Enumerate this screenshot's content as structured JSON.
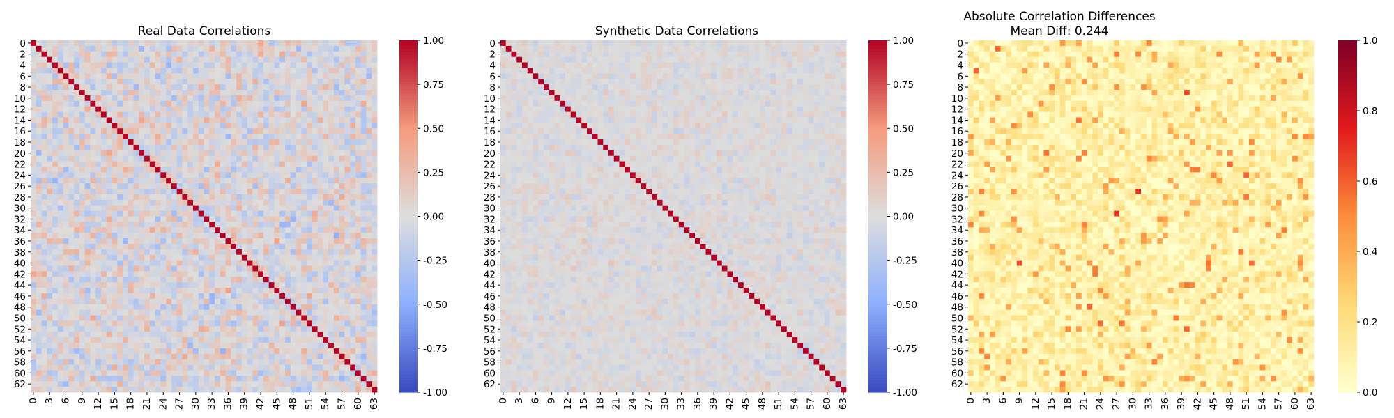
{
  "chart_data": [
    {
      "type": "heatmap",
      "title": "Real Data Correlations",
      "n": 64,
      "rows": 64,
      "cols": 64,
      "colormap": "coolwarm",
      "vmin": -1.0,
      "vmax": 1.0,
      "diagonal": 1.0,
      "offdiag_typical_range": [
        -0.6,
        0.6
      ],
      "xticklabels": [
        "0",
        "3",
        "6",
        "9",
        "12",
        "15",
        "18",
        "21",
        "24",
        "27",
        "30",
        "33",
        "36",
        "39",
        "42",
        "45",
        "48",
        "51",
        "54",
        "57",
        "60",
        "63"
      ],
      "yticklabels": [
        "0",
        "2",
        "4",
        "6",
        "8",
        "10",
        "12",
        "14",
        "16",
        "18",
        "20",
        "22",
        "24",
        "26",
        "28",
        "30",
        "32",
        "34",
        "36",
        "38",
        "40",
        "42",
        "44",
        "46",
        "48",
        "50",
        "52",
        "54",
        "56",
        "58",
        "60",
        "62"
      ],
      "colorbar_ticks": [
        "-1.00",
        "-0.75",
        "-0.50",
        "-0.25",
        "0.00",
        "0.25",
        "0.50",
        "0.75",
        "1.00"
      ]
    },
    {
      "type": "heatmap",
      "title": "Synthetic Data Correlations",
      "n": 64,
      "rows": 64,
      "cols": 64,
      "colormap": "coolwarm",
      "vmin": -1.0,
      "vmax": 1.0,
      "diagonal": 1.0,
      "offdiag_typical_range": [
        -0.25,
        0.25
      ],
      "xticklabels": [
        "0",
        "3",
        "6",
        "9",
        "12",
        "15",
        "18",
        "21",
        "24",
        "27",
        "30",
        "33",
        "36",
        "39",
        "42",
        "45",
        "48",
        "51",
        "54",
        "57",
        "60",
        "63"
      ],
      "yticklabels": [
        "0",
        "2",
        "4",
        "6",
        "8",
        "10",
        "12",
        "14",
        "16",
        "18",
        "20",
        "22",
        "24",
        "26",
        "28",
        "30",
        "32",
        "34",
        "36",
        "38",
        "40",
        "42",
        "44",
        "46",
        "48",
        "50",
        "52",
        "54",
        "56",
        "58",
        "60",
        "62"
      ],
      "colorbar_ticks": [
        "-1.00",
        "-0.75",
        "-0.50",
        "-0.25",
        "0.00",
        "0.25",
        "0.50",
        "0.75",
        "1.00"
      ]
    },
    {
      "type": "heatmap",
      "title": "Absolute Correlation Differences",
      "subtitle": "Mean Diff: 0.244",
      "mean_diff": 0.244,
      "n": 64,
      "rows": 64,
      "cols": 64,
      "colormap": "YlOrRd",
      "vmin": 0.0,
      "vmax": 1.0,
      "diagonal": 0.0,
      "offdiag_typical_range": [
        0.0,
        0.9
      ],
      "xticklabels": [
        "0",
        "3",
        "6",
        "9",
        "12",
        "15",
        "18",
        "21",
        "24",
        "27",
        "30",
        "33",
        "36",
        "39",
        "42",
        "45",
        "48",
        "51",
        "54",
        "57",
        "60",
        "63"
      ],
      "yticklabels": [
        "0",
        "2",
        "4",
        "6",
        "8",
        "10",
        "12",
        "14",
        "16",
        "18",
        "20",
        "22",
        "24",
        "26",
        "28",
        "30",
        "32",
        "34",
        "36",
        "38",
        "40",
        "42",
        "44",
        "46",
        "48",
        "50",
        "52",
        "54",
        "56",
        "58",
        "60",
        "62"
      ],
      "colorbar_ticks": [
        "0.0",
        "0.2",
        "0.4",
        "0.6",
        "0.8",
        "1.0"
      ]
    }
  ]
}
